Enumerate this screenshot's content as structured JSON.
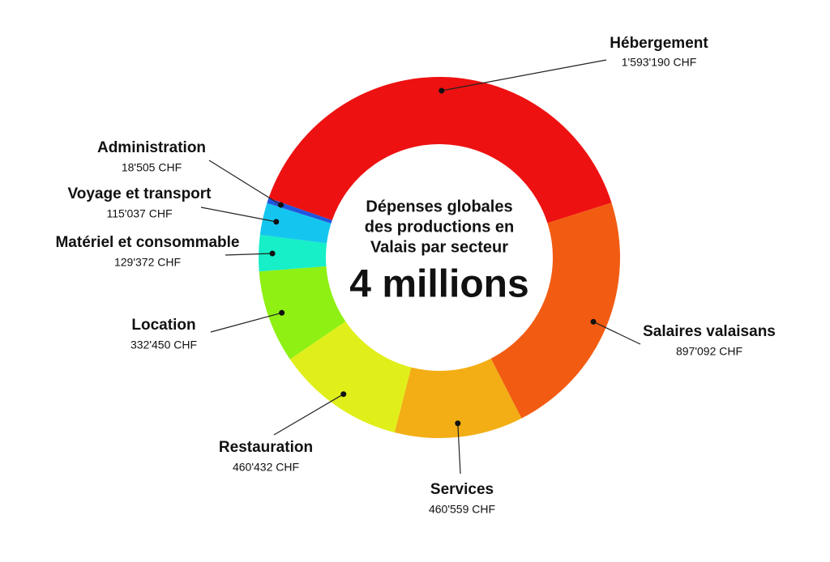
{
  "chart_data": {
    "type": "donut",
    "center_text": [
      "Dépenses globales",
      "des productions en",
      "Valais par secteur"
    ],
    "center_label": "4 millions",
    "categories": [
      "Hébergement",
      "Salaires valaisans",
      "Services",
      "Restauration",
      "Location",
      "Matériel et consommable",
      "Voyage et transport",
      "Administration"
    ],
    "values": [
      1593190,
      897092,
      460559,
      460432,
      332450,
      129372,
      115037,
      18505
    ],
    "value_labels": [
      "1'593'190 CHF",
      "897'092 CHF",
      "460'559 CHF",
      "460'432 CHF",
      "332'450 CHF",
      "129'372 CHF",
      "115'037 CHF",
      "18'505 CHF"
    ],
    "colors": [
      "#ee1111",
      "#f25c12",
      "#f2ae14",
      "#e0ef1a",
      "#8ef013",
      "#16efc8",
      "#14c6ef",
      "#2255dd"
    ]
  }
}
